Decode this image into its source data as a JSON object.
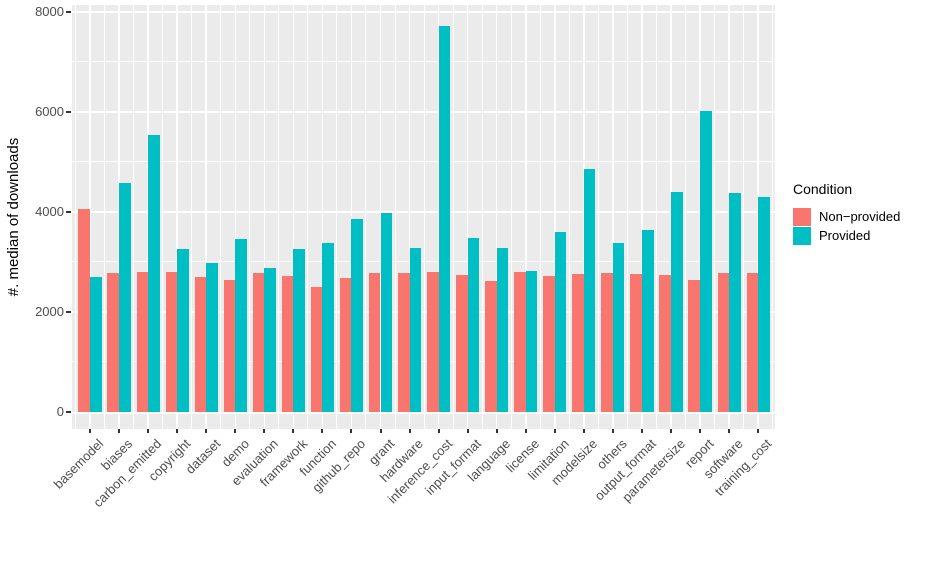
{
  "chart_data": {
    "type": "bar",
    "title": "",
    "xlabel": "",
    "ylabel": "#. median of downloads",
    "ylim": [
      0,
      8000
    ],
    "y_major_ticks": [
      0,
      2000,
      4000,
      6000,
      8000
    ],
    "y_minor_ticks": [
      1000,
      3000,
      5000,
      7000
    ],
    "grid": "on",
    "legend_position": "right",
    "legend_title": "Condition",
    "categories": [
      "basemodel",
      "biases",
      "carbon_emitted",
      "copyright",
      "dataset",
      "demo",
      "evaluation",
      "framework",
      "function",
      "github_repo",
      "grant",
      "hardware",
      "inference_cost",
      "input_format",
      "language",
      "license",
      "limitation",
      "modelsize",
      "others",
      "output_format",
      "parametersize",
      "report",
      "software",
      "training_cost"
    ],
    "series": [
      {
        "name": "Non−provided",
        "color": "#F8766D",
        "values": [
          4050,
          2770,
          2800,
          2800,
          2700,
          2630,
          2780,
          2710,
          2490,
          2670,
          2780,
          2770,
          2800,
          2730,
          2610,
          2800,
          2720,
          2750,
          2780,
          2750,
          2730,
          2630,
          2780,
          2780
        ]
      },
      {
        "name": "Provided",
        "color": "#00BFC4",
        "values": [
          2700,
          4580,
          5530,
          3260,
          2970,
          3450,
          2880,
          3250,
          3380,
          3850,
          3970,
          3270,
          7720,
          3470,
          3270,
          2820,
          3600,
          4850,
          3380,
          3630,
          4400,
          6020,
          4370,
          4290
        ]
      }
    ]
  },
  "axes": {
    "y_title": "#. median of downloads",
    "y_tick_labels": [
      "0",
      "2000",
      "4000",
      "6000",
      "8000"
    ]
  },
  "legend": {
    "title": "Condition",
    "items": [
      {
        "label": "Non−provided",
        "color": "#F8766D"
      },
      {
        "label": "Provided",
        "color": "#00BFC4"
      }
    ]
  },
  "theme": {
    "panel_background": "#EBEBEB",
    "gridline_color": "#FFFFFF",
    "axis_text_color": "#4D4D4D",
    "tick_mark_color": "#333333",
    "nonprovided_color": "#F8766D",
    "provided_color": "#00BFC4"
  }
}
